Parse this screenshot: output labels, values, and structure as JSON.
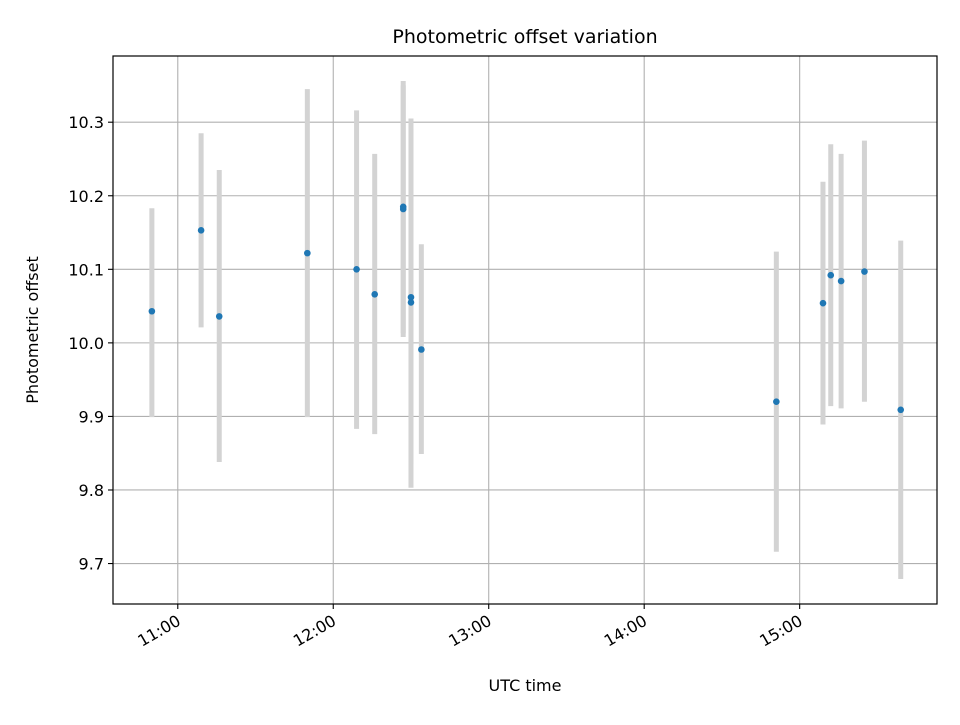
{
  "chart_data": {
    "type": "scatter",
    "title": "Photometric offset variation",
    "xlabel": "UTC time",
    "ylabel": "Photometric offset",
    "x_ticks": [
      "11:00",
      "12:00",
      "13:00",
      "14:00",
      "15:00"
    ],
    "y_ticks": [
      "9.7",
      "9.8",
      "9.9",
      "10.0",
      "10.1",
      "10.2",
      "10.3"
    ],
    "xlim": [
      "10:35",
      "15:53"
    ],
    "ylim": [
      9.645,
      10.39
    ],
    "grid": true,
    "marker_color": "#1f77b4",
    "errorbar_color": "#d3d3d3",
    "points": [
      {
        "time": "10:50",
        "y": 10.043,
        "err_low": 9.899,
        "err_high": 10.183
      },
      {
        "time": "11:09",
        "y": 10.153,
        "err_low": 10.021,
        "err_high": 10.285
      },
      {
        "time": "11:16",
        "y": 10.036,
        "err_low": 9.838,
        "err_high": 10.235
      },
      {
        "time": "11:50",
        "y": 10.122,
        "err_low": 9.899,
        "err_high": 10.345
      },
      {
        "time": "12:09",
        "y": 10.1,
        "err_low": 9.883,
        "err_high": 10.316
      },
      {
        "time": "12:16",
        "y": 10.066,
        "err_low": 9.876,
        "err_high": 10.257
      },
      {
        "time": "12:27",
        "y": 10.185,
        "err_low": 10.013,
        "err_high": 10.356
      },
      {
        "time": "12:27",
        "y": 10.182,
        "err_low": 10.008,
        "err_high": 10.35
      },
      {
        "time": "12:30",
        "y": 10.062,
        "err_low": 9.835,
        "err_high": 10.29
      },
      {
        "time": "12:30",
        "y": 10.055,
        "err_low": 9.803,
        "err_high": 10.305
      },
      {
        "time": "12:34",
        "y": 9.991,
        "err_low": 9.849,
        "err_high": 10.134
      },
      {
        "time": "14:51",
        "y": 9.92,
        "err_low": 9.716,
        "err_high": 10.124
      },
      {
        "time": "15:09",
        "y": 10.054,
        "err_low": 9.889,
        "err_high": 10.219
      },
      {
        "time": "15:12",
        "y": 10.092,
        "err_low": 9.914,
        "err_high": 10.27
      },
      {
        "time": "15:16",
        "y": 10.084,
        "err_low": 9.911,
        "err_high": 10.257
      },
      {
        "time": "15:25",
        "y": 10.097,
        "err_low": 9.92,
        "err_high": 10.275
      },
      {
        "time": "15:39",
        "y": 9.909,
        "err_low": 9.679,
        "err_high": 10.139
      }
    ]
  }
}
